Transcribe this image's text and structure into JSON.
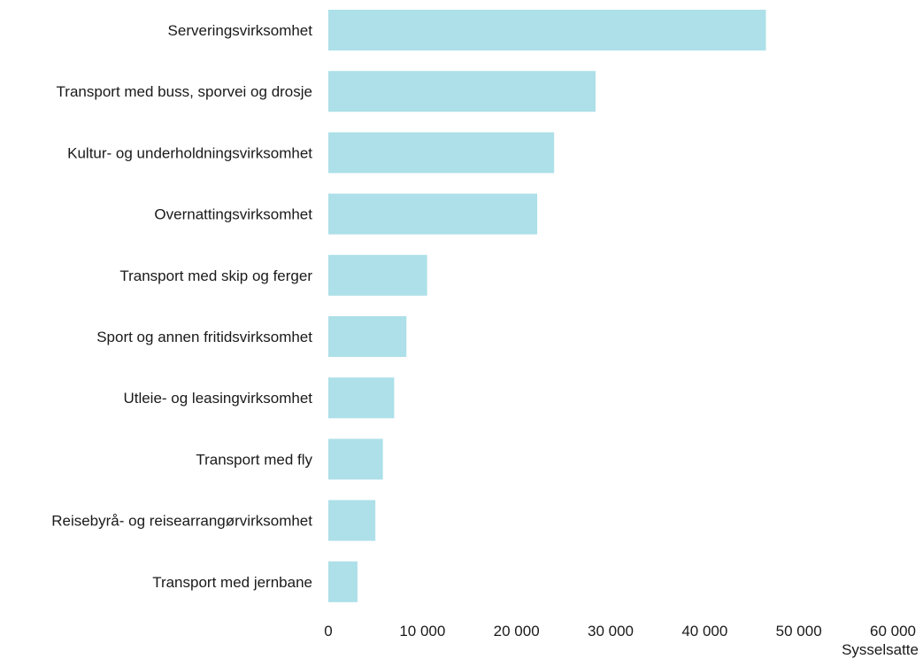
{
  "chart_data": {
    "type": "bar",
    "orientation": "horizontal",
    "categories": [
      "Serveringsvirksomhet",
      "Transport med buss, sporvei og drosje",
      "Kultur- og underholdningsvirksomhet",
      "Overnattingsvirksomhet",
      "Transport med skip og ferger",
      "Sport og annen fritidsvirksomhet",
      "Utleie- og leasingvirksomhet",
      "Transport med fly",
      "Reisebyrå- og reisearrangørvirksomhet",
      "Transport med jernbane"
    ],
    "values": [
      46500,
      28400,
      24000,
      22200,
      10500,
      8300,
      7000,
      5800,
      5000,
      3100
    ],
    "xlabel": "Sysselsatte",
    "xlim": [
      0,
      60000
    ],
    "xticks": [
      0,
      10000,
      20000,
      30000,
      40000,
      50000,
      60000
    ],
    "xtick_labels": [
      "0",
      "10 000",
      "20 000",
      "30 000",
      "40 000",
      "50 000",
      "60 000"
    ],
    "grid": false,
    "legend": "none",
    "bar_color": "#ADE0E8"
  }
}
